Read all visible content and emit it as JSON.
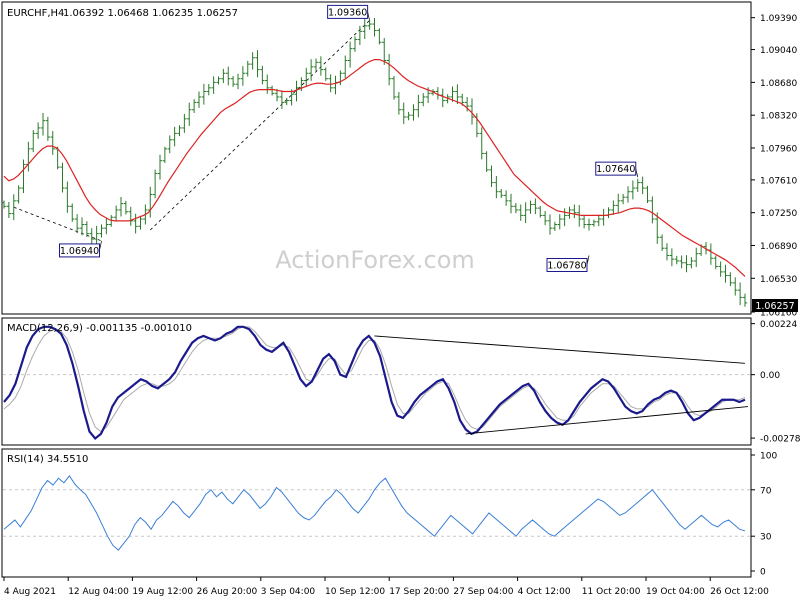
{
  "header": {
    "symbol": "EURCHF,H4",
    "ohlc": "1.06392 1.06468 1.06235 1.06257"
  },
  "watermark": "ActionForex.com",
  "colors": {
    "price_bars": "#2a7a2a",
    "sma": "#dd2222",
    "macd": "#1a1a8c",
    "macd_signal": "#aaaaaa",
    "rsi": "#3a7fd6",
    "trendline": "#000000",
    "label_border": "#1a1a8c",
    "current_price_box": "#000000",
    "grid": "#c8c8c8"
  },
  "chart_data": [
    {
      "type": "line",
      "panel": "price",
      "title": "EURCHF,H4",
      "ylim": [
        1.0616,
        1.0954
      ],
      "x_ticks": [
        "4 Aug 2021",
        "12 Aug 04:00",
        "19 Aug 12:00",
        "26 Aug 20:00",
        "3 Sep 04:00",
        "10 Sep 12:00",
        "17 Sep 20:00",
        "27 Sep 04:00",
        "4 Oct 12:00",
        "11 Oct 20:00",
        "19 Oct 04:00",
        "26 Oct 12:00"
      ],
      "y_ticks": [
        "1.09390",
        "1.09040",
        "1.08680",
        "1.08320",
        "1.07960",
        "1.07610",
        "1.07250",
        "1.06890",
        "1.06530",
        "1.06160"
      ],
      "current_price": "1.06257",
      "annotations": [
        {
          "label": "1.09360",
          "value": 1.0936,
          "index": 75
        },
        {
          "label": "1.06940",
          "value": 1.0694,
          "index": 20
        },
        {
          "label": "1.06780",
          "value": 1.0678,
          "index": 120
        },
        {
          "label": "1.07640",
          "value": 1.0764,
          "index": 130
        }
      ],
      "series": [
        {
          "values": [
            1.0732,
            1.0724,
            1.0738,
            1.0752,
            1.0778,
            1.0795,
            1.0812,
            1.0818,
            1.0826,
            1.0808,
            1.0795,
            1.0775,
            1.0752,
            1.0732,
            1.0718,
            1.0708,
            1.0712,
            1.0702,
            1.0696,
            1.0702,
            1.0708,
            1.0712,
            1.072,
            1.0728,
            1.0735,
            1.0726,
            1.0716,
            1.071,
            1.0718,
            1.0728,
            1.0745,
            1.0768,
            1.0782,
            1.0795,
            1.0805,
            1.0812,
            1.0818,
            1.0828,
            1.0838,
            1.0846,
            1.0852,
            1.0858,
            1.0862,
            1.0868,
            1.0872,
            1.0878,
            1.0872,
            1.0866,
            1.0872,
            1.0878,
            1.0888,
            1.0895,
            1.0882,
            1.087,
            1.0862,
            1.0856,
            1.0852,
            1.0846,
            1.0848,
            1.0855,
            1.0862,
            1.087,
            1.0878,
            1.0885,
            1.089,
            1.0882,
            1.0872,
            1.0862,
            1.0868,
            1.0878,
            1.0892,
            1.0905,
            1.0915,
            1.0924,
            1.093,
            1.0932,
            1.0925,
            1.0912,
            1.0892,
            1.0872,
            1.0852,
            1.0838,
            1.083,
            1.0832,
            1.0838,
            1.0846,
            1.0852,
            1.0856,
            1.0858,
            1.0854,
            1.0848,
            1.0852,
            1.0858,
            1.0852,
            1.0846,
            1.0842,
            1.083,
            1.0812,
            1.079,
            1.0772,
            1.0758,
            1.0748,
            1.0744,
            1.0738,
            1.0732,
            1.0728,
            1.0722,
            1.0728,
            1.0734,
            1.073,
            1.0722,
            1.0716,
            1.0708,
            1.0712,
            1.0718,
            1.0722,
            1.0728,
            1.0725,
            1.0718,
            1.0712,
            1.0712,
            1.0715,
            1.0718,
            1.0722,
            1.0728,
            1.0733,
            1.0738,
            1.0742,
            1.0748,
            1.0752,
            1.0758,
            1.0752,
            1.0738,
            1.0718,
            1.0698,
            1.0686,
            1.0678,
            1.0674,
            1.0672,
            1.067,
            1.0668,
            1.0672,
            1.068,
            1.0688,
            1.0684,
            1.0675,
            1.0666,
            1.066,
            1.0656,
            1.0648,
            1.064,
            1.0632,
            1.0626
          ]
        },
        {
          "values": [
            1.0765,
            1.076,
            1.0762,
            1.0766,
            1.0772,
            1.0778,
            1.0784,
            1.079,
            1.0795,
            1.0798,
            1.0798,
            1.0796,
            1.079,
            1.0782,
            1.0772,
            1.0762,
            1.0752,
            1.0742,
            1.0734,
            1.0728,
            1.0723,
            1.072,
            1.0717,
            1.0716,
            1.0716,
            1.0716,
            1.0716,
            1.0718,
            1.072,
            1.0722,
            1.0725,
            1.0732,
            1.074,
            1.0749,
            1.0758,
            1.0766,
            1.0774,
            1.0782,
            1.079,
            1.0797,
            1.0804,
            1.0811,
            1.0817,
            1.0823,
            1.0829,
            1.0835,
            1.0839,
            1.0842,
            1.0845,
            1.0849,
            1.0853,
            1.0857,
            1.0859,
            1.086,
            1.086,
            1.086,
            1.086,
            1.0859,
            1.0858,
            1.0858,
            1.0858,
            1.086,
            1.0862,
            1.0864,
            1.0866,
            1.0867,
            1.0867,
            1.0866,
            1.0866,
            1.0867,
            1.0869,
            1.0872,
            1.0876,
            1.088,
            1.0884,
            1.0888,
            1.0891,
            1.0893,
            1.0893,
            1.0891,
            1.0888,
            1.0884,
            1.0879,
            1.0874,
            1.087,
            1.0867,
            1.0864,
            1.0862,
            1.086,
            1.0858,
            1.0855,
            1.0853,
            1.0851,
            1.0849,
            1.0847,
            1.0845,
            1.0841,
            1.0836,
            1.083,
            1.0823,
            1.0815,
            1.0807,
            1.0799,
            1.0791,
            1.0783,
            1.0775,
            1.0767,
            1.0762,
            1.0757,
            1.0752,
            1.0747,
            1.0742,
            1.0737,
            1.0733,
            1.073,
            1.0727,
            1.0726,
            1.0725,
            1.0724,
            1.0723,
            1.0722,
            1.0722,
            1.0722,
            1.0722,
            1.0722,
            1.0722,
            1.0723,
            1.0724,
            1.0725,
            1.0727,
            1.0729,
            1.073,
            1.073,
            1.0729,
            1.0727,
            1.0724,
            1.072,
            1.0716,
            1.0712,
            1.0708,
            1.0704,
            1.07,
            1.0697,
            1.0694,
            1.0691,
            1.0688,
            1.0685,
            1.0682,
            1.0679,
            1.0676,
            1.0673,
            1.0669,
            1.0665,
            1.066,
            1.0655
          ]
        }
      ]
    },
    {
      "type": "line",
      "panel": "macd",
      "title": "MACD(12,26,9) -0.001135 -0.001010",
      "ylim": [
        -0.003,
        0.0024
      ],
      "y_ticks": [
        "0.00224",
        "0.00",
        "-0.002785"
      ],
      "series": [
        {
          "values": [
            -0.0012,
            -0.0009,
            -0.0004,
            0.0004,
            0.0012,
            0.0017,
            0.002,
            0.0021,
            0.0021,
            0.002,
            0.0018,
            0.0013,
            0.0005,
            -0.0005,
            -0.0016,
            -0.0025,
            -0.0028,
            -0.0026,
            -0.0021,
            -0.0014,
            -0.001,
            -0.0008,
            -0.0006,
            -0.0004,
            -0.0002,
            -0.0003,
            -0.0005,
            -0.0006,
            -0.0004,
            -0.0002,
            0.0001,
            0.0006,
            0.001,
            0.0014,
            0.0016,
            0.0017,
            0.0016,
            0.0015,
            0.0016,
            0.0018,
            0.0019,
            0.0021,
            0.0021,
            0.002,
            0.0017,
            0.0013,
            0.0011,
            0.001,
            0.0012,
            0.0014,
            0.001,
            0.0004,
            -0.0002,
            -0.0005,
            -0.0003,
            0.0002,
            0.0007,
            0.0009,
            0.0006,
            0.0,
            -0.0001,
            0.0005,
            0.0011,
            0.0015,
            0.0017,
            0.0014,
            0.0008,
            -0.0002,
            -0.0012,
            -0.0018,
            -0.0019,
            -0.0016,
            -0.0012,
            -0.0009,
            -0.0007,
            -0.0005,
            -0.0003,
            -0.0002,
            -0.0006,
            -0.0012,
            -0.002,
            -0.0024,
            -0.0026,
            -0.0025,
            -0.0022,
            -0.0019,
            -0.0016,
            -0.0013,
            -0.0011,
            -0.0009,
            -0.0007,
            -0.0005,
            -0.0004,
            -0.0007,
            -0.0012,
            -0.0016,
            -0.0019,
            -0.0021,
            -0.0022,
            -0.002,
            -0.0016,
            -0.0012,
            -0.0009,
            -0.0006,
            -0.0004,
            -0.0002,
            -0.0003,
            -0.0006,
            -0.001,
            -0.0014,
            -0.0016,
            -0.0017,
            -0.0016,
            -0.0013,
            -0.0011,
            -0.001,
            -0.0008,
            -0.0007,
            -0.0008,
            -0.0012,
            -0.0017,
            -0.002,
            -0.0019,
            -0.0017,
            -0.0015,
            -0.0013,
            -0.0011,
            -0.0011,
            -0.0011,
            -0.0012,
            -0.0011
          ]
        },
        {
          "values": [
            -0.0015,
            -0.0013,
            -0.001,
            -0.0005,
            0.0002,
            0.0008,
            0.0013,
            0.0017,
            0.0019,
            0.002,
            0.0019,
            0.0016,
            0.001,
            0.0002,
            -0.0008,
            -0.0017,
            -0.0023,
            -0.0025,
            -0.0023,
            -0.0019,
            -0.0015,
            -0.0011,
            -0.0009,
            -0.0007,
            -0.0005,
            -0.0004,
            -0.0004,
            -0.0005,
            -0.0005,
            -0.0004,
            -0.0002,
            0.0002,
            0.0006,
            0.001,
            0.0013,
            0.0015,
            0.0016,
            0.0016,
            0.0016,
            0.0017,
            0.0018,
            0.002,
            0.0021,
            0.0021,
            0.0019,
            0.0016,
            0.0013,
            0.0012,
            0.0012,
            0.0013,
            0.0012,
            0.0008,
            0.0003,
            -0.0002,
            -0.0003,
            0.0,
            0.0004,
            0.0007,
            0.0007,
            0.0003,
            0.0,
            0.0002,
            0.0007,
            0.0012,
            0.0015,
            0.0015,
            0.0011,
            0.0004,
            -0.0005,
            -0.0013,
            -0.0017,
            -0.0017,
            -0.0014,
            -0.0011,
            -0.0008,
            -0.0006,
            -0.0004,
            -0.0003,
            -0.0004,
            -0.0009,
            -0.0015,
            -0.002,
            -0.0023,
            -0.0024,
            -0.0023,
            -0.002,
            -0.0017,
            -0.0014,
            -0.0012,
            -0.001,
            -0.0008,
            -0.0006,
            -0.0005,
            -0.0006,
            -0.0009,
            -0.0013,
            -0.0016,
            -0.0019,
            -0.002,
            -0.002,
            -0.0018,
            -0.0014,
            -0.0011,
            -0.0008,
            -0.0006,
            -0.0004,
            -0.0004,
            -0.0005,
            -0.0008,
            -0.0011,
            -0.0014,
            -0.0015,
            -0.0015,
            -0.0014,
            -0.0012,
            -0.0011,
            -0.0009,
            -0.0008,
            -0.0008,
            -0.001,
            -0.0014,
            -0.0017,
            -0.0018,
            -0.0017,
            -0.0016,
            -0.0014,
            -0.0012,
            -0.0011,
            -0.0011,
            -0.0011,
            -0.001
          ]
        }
      ]
    },
    {
      "type": "line",
      "panel": "rsi",
      "title": "RSI(14) 34.5510",
      "ylim": [
        0,
        100
      ],
      "y_ticks": [
        "100",
        "70",
        "30",
        "0"
      ],
      "series": [
        {
          "values": [
            36,
            40,
            44,
            38,
            45,
            52,
            62,
            72,
            78,
            74,
            80,
            76,
            82,
            75,
            70,
            66,
            58,
            50,
            40,
            30,
            22,
            18,
            24,
            30,
            40,
            46,
            42,
            36,
            44,
            48,
            54,
            60,
            56,
            50,
            46,
            52,
            58,
            66,
            70,
            64,
            68,
            62,
            58,
            64,
            70,
            66,
            60,
            54,
            58,
            64,
            72,
            68,
            62,
            56,
            50,
            46,
            44,
            48,
            54,
            60,
            64,
            70,
            66,
            60,
            54,
            50,
            56,
            62,
            70,
            76,
            80,
            72,
            64,
            56,
            50,
            46,
            42,
            38,
            34,
            30,
            36,
            42,
            48,
            44,
            40,
            36,
            32,
            38,
            44,
            50,
            46,
            42,
            38,
            34,
            30,
            36,
            40,
            44,
            40,
            36,
            32,
            30,
            34,
            38,
            42,
            46,
            50,
            54,
            58,
            62,
            60,
            56,
            52,
            48,
            50,
            54,
            58,
            62,
            66,
            70,
            64,
            58,
            52,
            46,
            40,
            36,
            40,
            44,
            48,
            44,
            40,
            38,
            42,
            44,
            40,
            36,
            34.55
          ]
        }
      ]
    }
  ]
}
